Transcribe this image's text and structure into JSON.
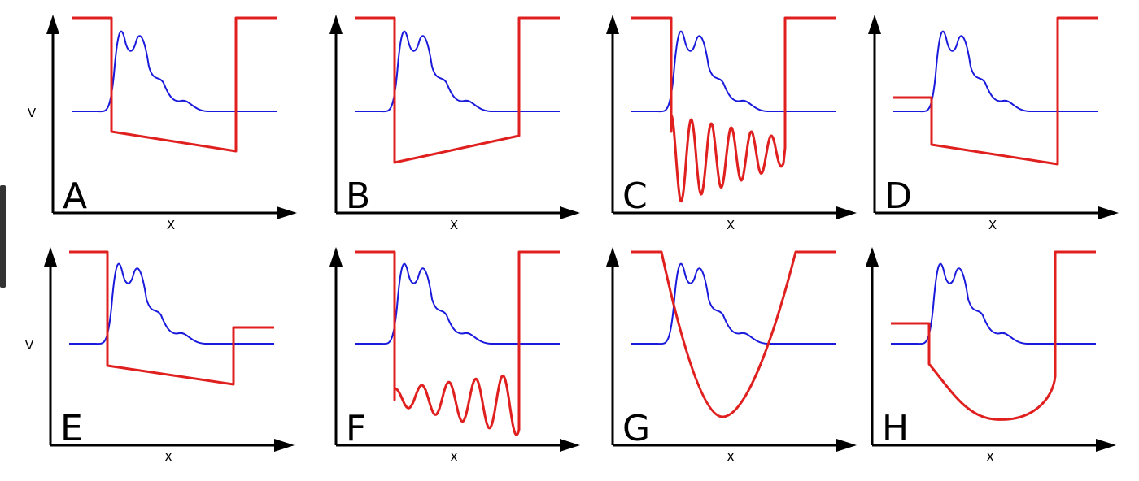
{
  "panels": [
    {
      "label": "A",
      "x_label": "X",
      "y_label": "V"
    },
    {
      "label": "B",
      "x_label": "X"
    },
    {
      "label": "C",
      "x_label": "X"
    },
    {
      "label": "D",
      "x_label": "X"
    },
    {
      "label": "E",
      "x_label": "X",
      "y_label": "V"
    },
    {
      "label": "F",
      "x_label": "X"
    },
    {
      "label": "G",
      "x_label": "X"
    },
    {
      "label": "H",
      "x_label": "X"
    }
  ]
}
